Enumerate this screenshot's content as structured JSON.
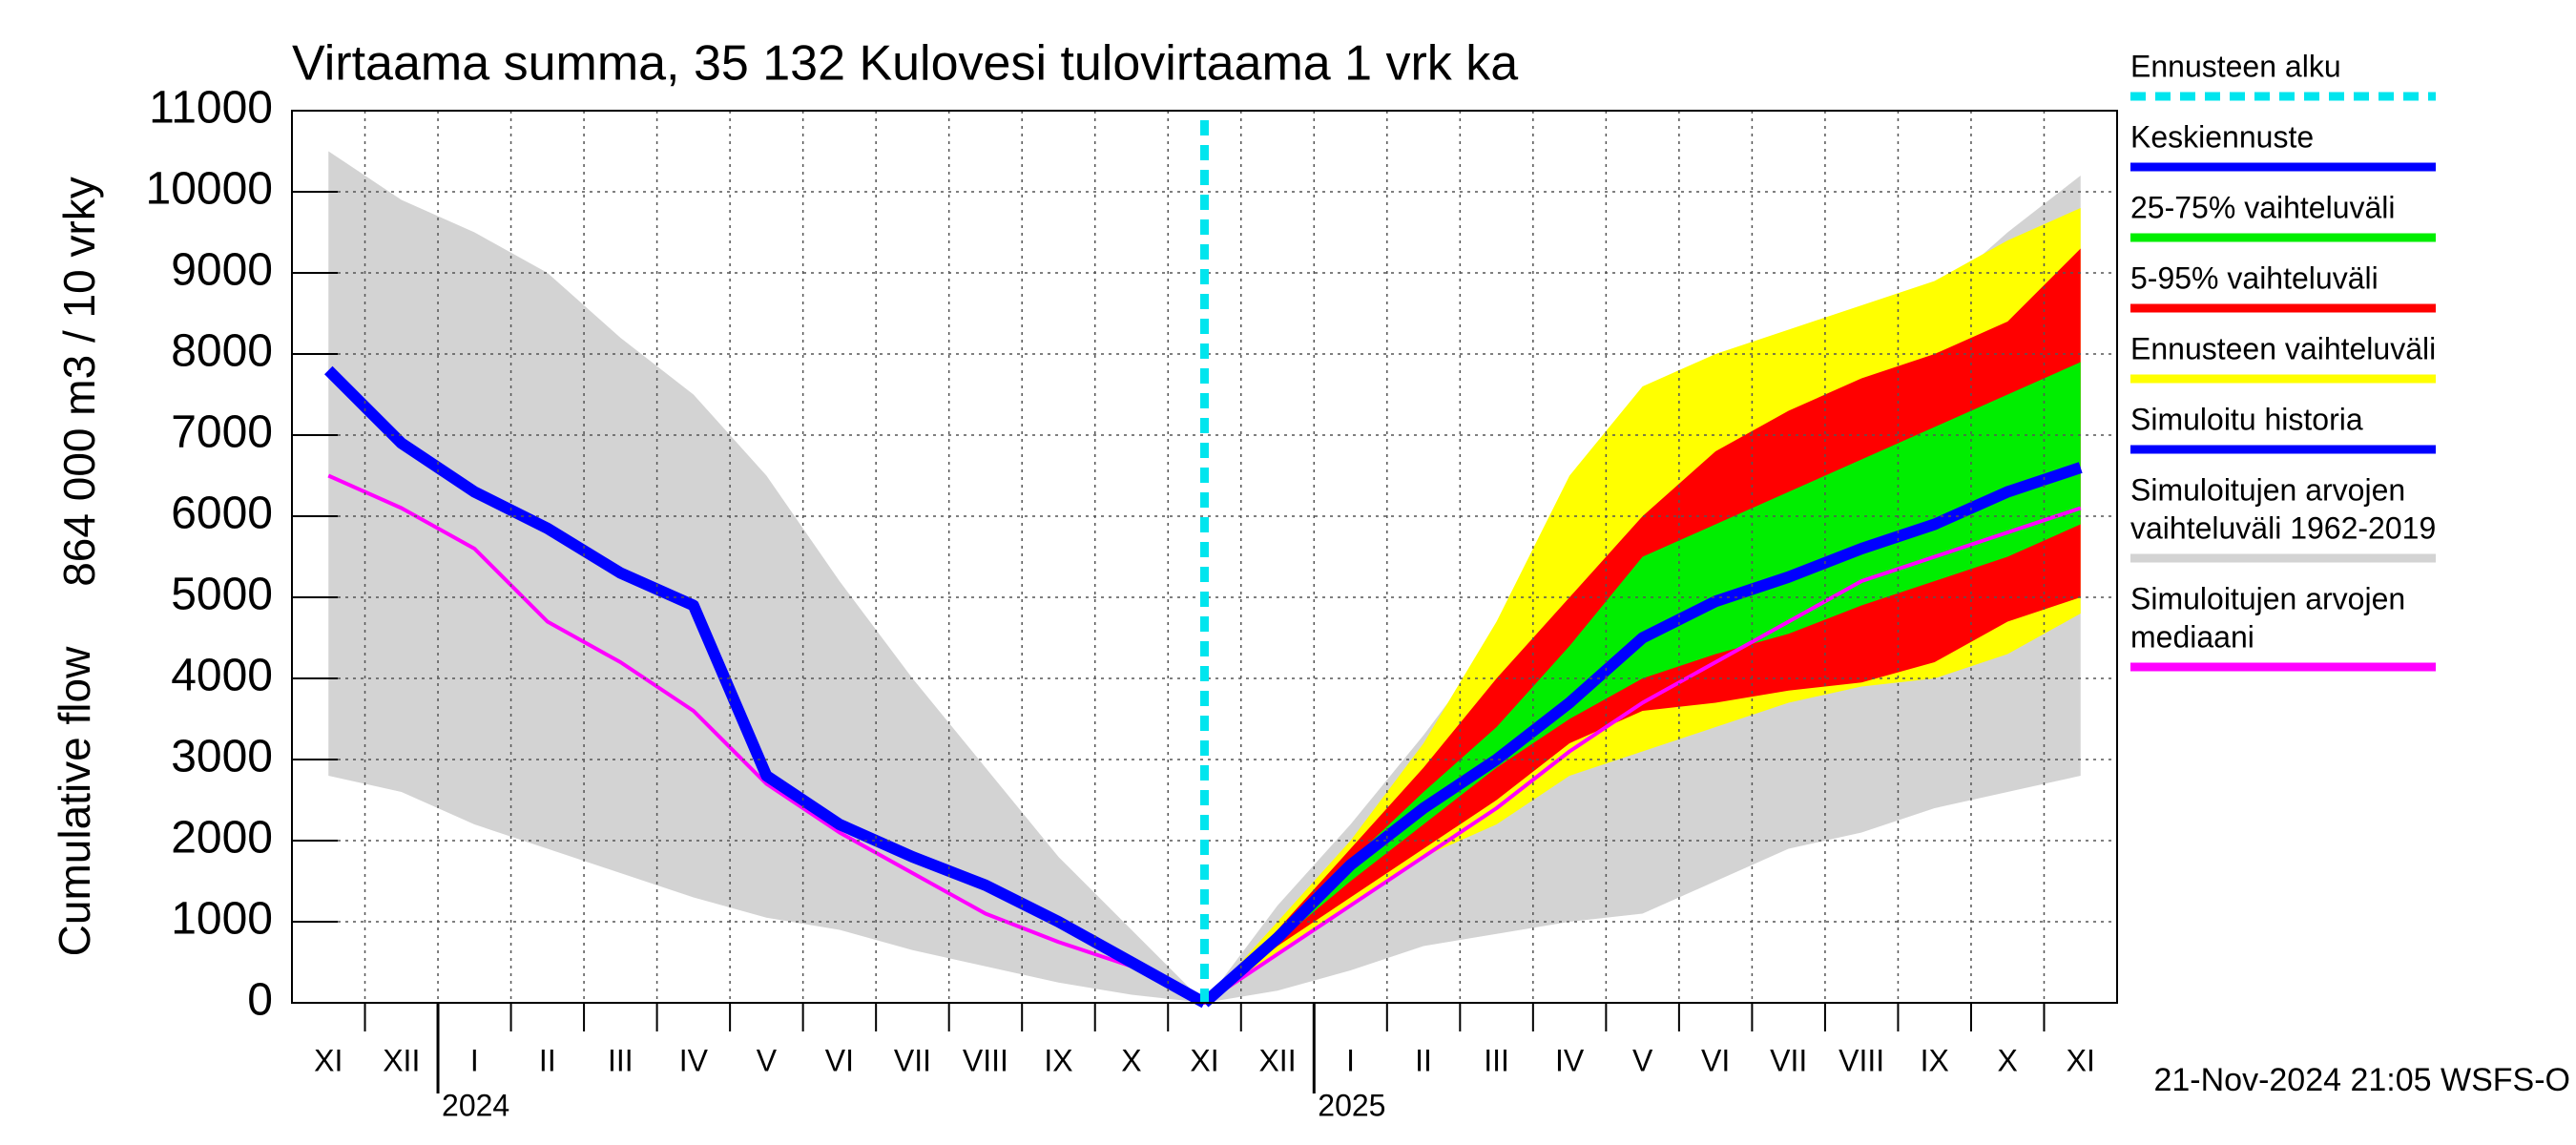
{
  "chart_data": {
    "type": "line",
    "title": "Virtaama summa, 35 132 Kulovesi tulovirtaama 1 vrk ka",
    "y_label": [
      "864 000 m3 / 10 vrky",
      "Cumulative flow"
    ],
    "footer": "21-Nov-2024 21:05 WSFS-O",
    "categories": [
      "XI",
      "XII",
      "I",
      "II",
      "III",
      "IV",
      "V",
      "VI",
      "VII",
      "VIII",
      "IX",
      "X",
      "XI",
      "XII",
      "I",
      "II",
      "III",
      "IV",
      "V",
      "VI",
      "VII",
      "VIII",
      "IX",
      "X",
      "XI"
    ],
    "year_labels": [
      "2024",
      "2025"
    ],
    "ylim": [
      0,
      11000
    ],
    "yticks": [
      0,
      1000,
      2000,
      3000,
      4000,
      5000,
      6000,
      7000,
      8000,
      9000,
      10000,
      11000
    ],
    "grid": true,
    "forecast_start": {
      "name": "Ennusteen alku",
      "color": "#00e5ee",
      "category": 12
    },
    "series": [
      {
        "name": "Keskiennuste",
        "kind": "line",
        "color": "#0000ff",
        "values": [
          null,
          null,
          null,
          null,
          null,
          null,
          null,
          null,
          null,
          null,
          null,
          null,
          0,
          800,
          1700,
          2400,
          3000,
          3700,
          4500,
          4950,
          5250,
          5600,
          5900,
          6300,
          6600
        ]
      },
      {
        "name": "25-75% vaihteluväli",
        "kind": "band",
        "color": "#00ee00",
        "low": [
          null,
          null,
          null,
          null,
          null,
          null,
          null,
          null,
          null,
          null,
          null,
          null,
          0,
          750,
          1500,
          2200,
          2900,
          3500,
          4000,
          4300,
          4550,
          4900,
          5200,
          5500,
          5900
        ],
        "high": [
          null,
          null,
          null,
          null,
          null,
          null,
          null,
          null,
          null,
          null,
          null,
          null,
          0,
          850,
          1750,
          2600,
          3400,
          4400,
          5500,
          5900,
          6300,
          6700,
          7100,
          7500,
          7900
        ]
      },
      {
        "name": "5-95% vaihteluväli",
        "kind": "band",
        "color": "#ff0000",
        "low": [
          null,
          null,
          null,
          null,
          null,
          null,
          null,
          null,
          null,
          null,
          null,
          null,
          0,
          700,
          1300,
          1900,
          2500,
          3200,
          3600,
          3700,
          3850,
          3950,
          4200,
          4700,
          5000
        ],
        "high": [
          null,
          null,
          null,
          null,
          null,
          null,
          null,
          null,
          null,
          null,
          null,
          null,
          0,
          900,
          1900,
          2900,
          4000,
          5000,
          6000,
          6800,
          7300,
          7700,
          8000,
          8400,
          9300
        ]
      },
      {
        "name": "Ennusteen vaihteluväli",
        "kind": "band",
        "color": "#ffff00",
        "low": [
          null,
          null,
          null,
          null,
          null,
          null,
          null,
          null,
          null,
          null,
          null,
          null,
          0,
          600,
          1200,
          1800,
          2200,
          2800,
          3100,
          3400,
          3700,
          3900,
          4000,
          4300,
          4800
        ],
        "high": [
          null,
          null,
          null,
          null,
          null,
          null,
          null,
          null,
          null,
          null,
          null,
          null,
          0,
          1000,
          2000,
          3200,
          4700,
          6500,
          7600,
          8000,
          8300,
          8600,
          8900,
          9400,
          9800
        ]
      },
      {
        "name": "Simuloitu historia",
        "kind": "line",
        "color": "#0000ff",
        "values": [
          7800,
          6900,
          6300,
          5850,
          5300,
          4900,
          2800,
          2200,
          1800,
          1450,
          1000,
          500,
          0,
          null,
          null,
          null,
          null,
          null,
          null,
          null,
          null,
          null,
          null,
          null,
          null
        ]
      },
      {
        "name": [
          "Simuloitujen arvojen",
          "vaihteluväli 1962-2019"
        ],
        "kind": "band",
        "color": "#d3d3d3",
        "low": [
          2800,
          2600,
          2200,
          1900,
          1600,
          1300,
          1050,
          900,
          650,
          450,
          250,
          100,
          0,
          150,
          400,
          700,
          850,
          1000,
          1100,
          1500,
          1900,
          2100,
          2400,
          2600,
          2800
        ],
        "high": [
          10500,
          9900,
          9500,
          9000,
          8200,
          7500,
          6500,
          5200,
          4000,
          2900,
          1800,
          900,
          0,
          1200,
          2200,
          3300,
          4500,
          5500,
          6200,
          6800,
          7300,
          8000,
          8700,
          9500,
          10200
        ]
      },
      {
        "name": [
          "Simuloitujen arvojen",
          "mediaani"
        ],
        "kind": "line",
        "color": "#ff00ff",
        "values": [
          6500,
          6100,
          5600,
          4700,
          4200,
          3600,
          2700,
          2100,
          1600,
          1100,
          750,
          450,
          0,
          600,
          1200,
          1800,
          2400,
          3100,
          3700,
          4200,
          4700,
          5200,
          5500,
          5800,
          6100
        ]
      }
    ]
  }
}
